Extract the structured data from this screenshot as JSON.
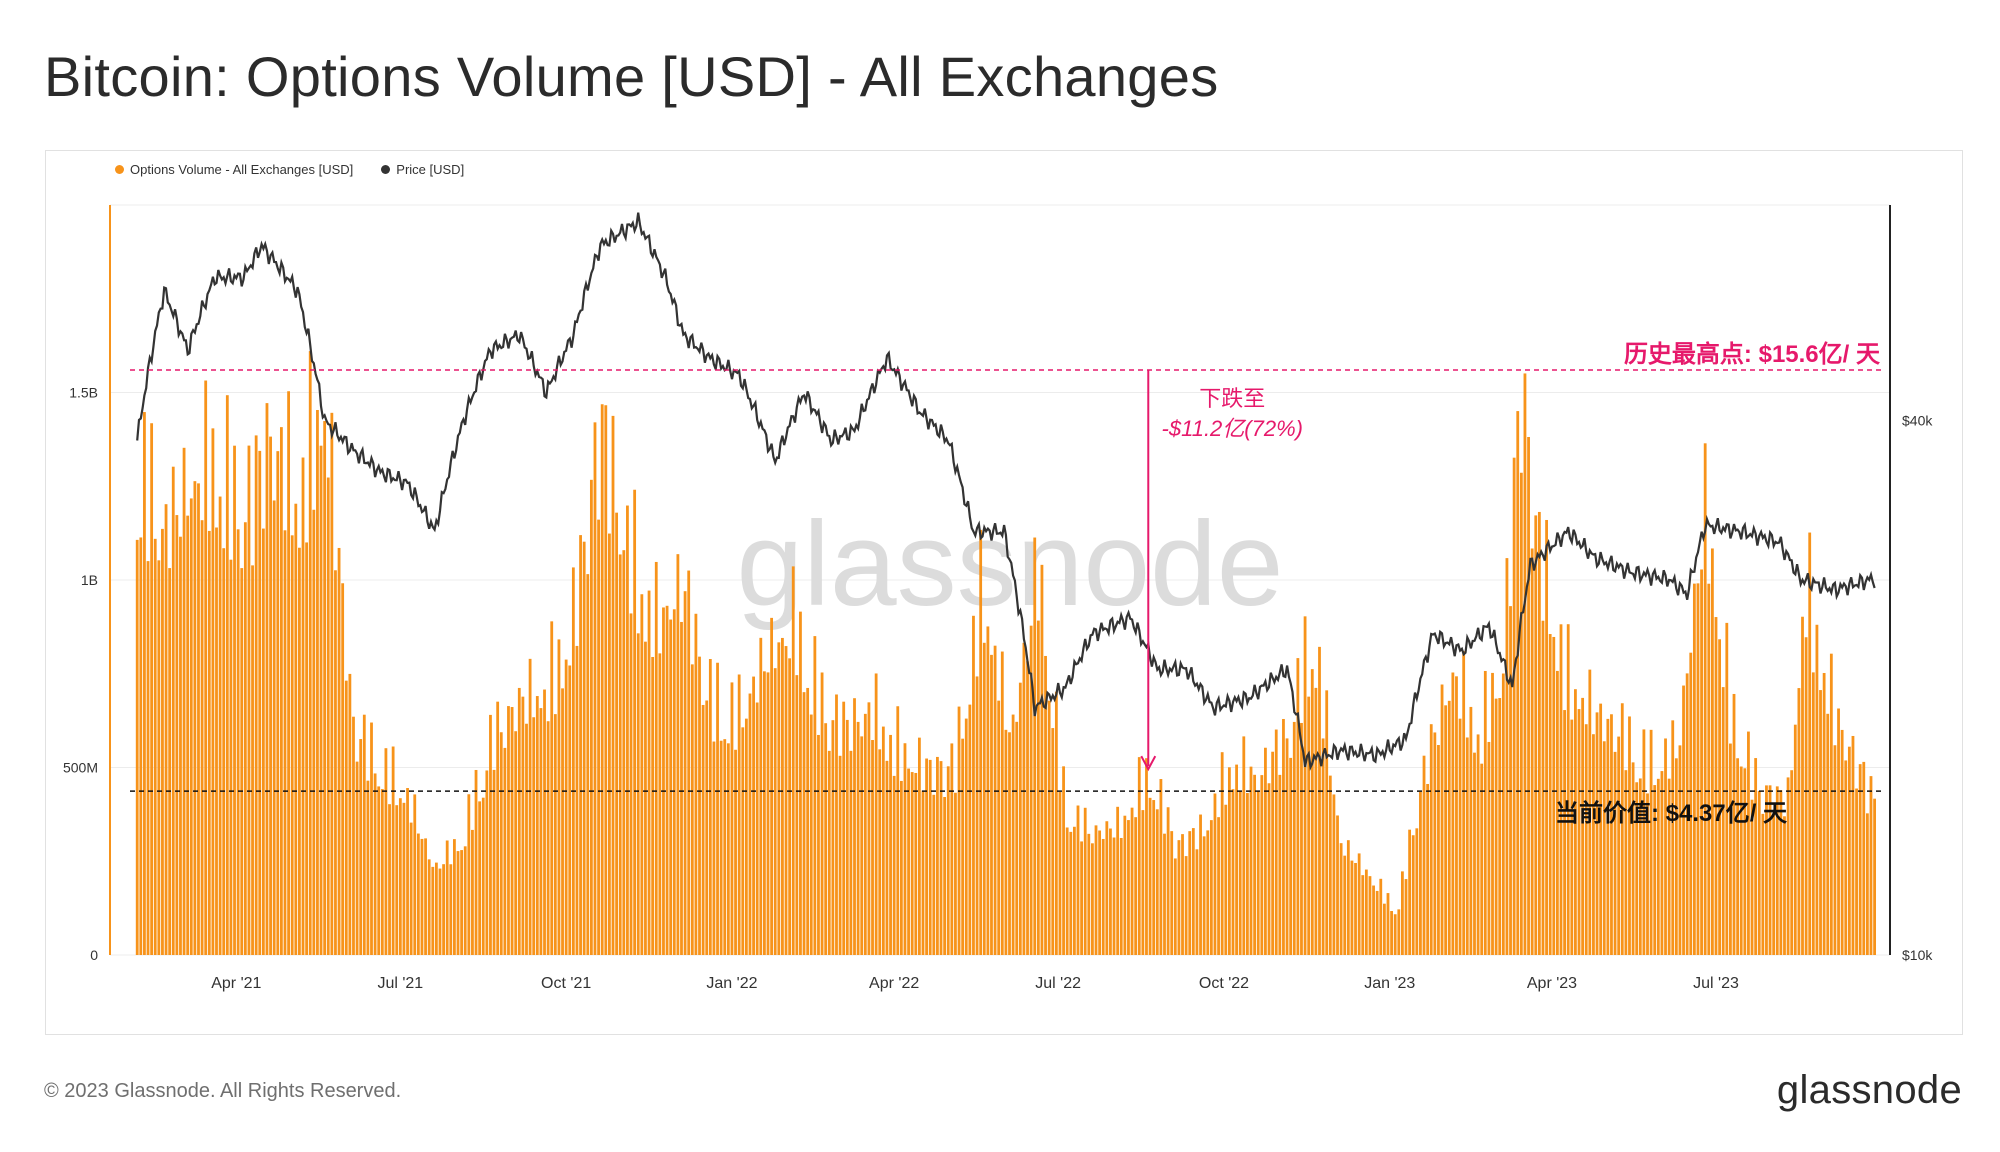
{
  "title": "Bitcoin: Options Volume [USD] - All Exchanges",
  "footer": "© 2023 Glassnode. All Rights Reserved.",
  "brand": "glassnode",
  "watermark": "glassnode",
  "legend": [
    {
      "label": "Options Volume - All Exchanges [USD]",
      "color": "#f7931a"
    },
    {
      "label": "Price [USD]",
      "color": "#333333"
    }
  ],
  "colors": {
    "volume": "#f7931a",
    "price": "#333333",
    "annotation": "#e6196b",
    "current": "#111111"
  },
  "chart_data": {
    "type": "bar",
    "y_left": {
      "ticks": [
        "0",
        "500M",
        "1B",
        "1.5B"
      ],
      "range": [
        0,
        2000000000
      ]
    },
    "y_right": {
      "ticks": [
        "$10k",
        "$40k"
      ],
      "scale": "log",
      "range": [
        10000,
        70000
      ]
    },
    "x_ticks": [
      "Apr '21",
      "Jul '21",
      "Oct '21",
      "Jan '22",
      "Apr '22",
      "Jul '22",
      "Oct '22",
      "Jan '23",
      "Apr '23",
      "Jul '23"
    ],
    "x_range": [
      "2021-02-01",
      "2023-09-30"
    ],
    "series": [
      {
        "name": "Options Volume - All Exchanges [USD]",
        "axis": "left",
        "unit": "USD",
        "points": [
          [
            "2021-02-05",
            1350000000
          ],
          [
            "2021-02-20",
            1150000000
          ],
          [
            "2021-03-05",
            1250000000
          ],
          [
            "2021-03-20",
            1350000000
          ],
          [
            "2021-04-05",
            1200000000
          ],
          [
            "2021-04-20",
            1400000000
          ],
          [
            "2021-05-05",
            1250000000
          ],
          [
            "2021-05-20",
            1500000000
          ],
          [
            "2021-06-05",
            620000000
          ],
          [
            "2021-06-20",
            520000000
          ],
          [
            "2021-07-05",
            430000000
          ],
          [
            "2021-07-20",
            230000000
          ],
          [
            "2021-08-05",
            320000000
          ],
          [
            "2021-08-20",
            580000000
          ],
          [
            "2021-09-05",
            680000000
          ],
          [
            "2021-09-20",
            720000000
          ],
          [
            "2021-10-05",
            900000000
          ],
          [
            "2021-10-20",
            1450000000
          ],
          [
            "2021-11-05",
            1100000000
          ],
          [
            "2021-11-20",
            900000000
          ],
          [
            "2021-12-05",
            1000000000
          ],
          [
            "2021-12-20",
            700000000
          ],
          [
            "2022-01-05",
            650000000
          ],
          [
            "2022-01-20",
            800000000
          ],
          [
            "2022-02-05",
            900000000
          ],
          [
            "2022-02-20",
            680000000
          ],
          [
            "2022-03-05",
            620000000
          ],
          [
            "2022-03-20",
            660000000
          ],
          [
            "2022-04-05",
            550000000
          ],
          [
            "2022-04-20",
            500000000
          ],
          [
            "2022-05-05",
            520000000
          ],
          [
            "2022-05-20",
            1000000000
          ],
          [
            "2022-06-05",
            580000000
          ],
          [
            "2022-06-20",
            1050000000
          ],
          [
            "2022-07-05",
            400000000
          ],
          [
            "2022-07-20",
            330000000
          ],
          [
            "2022-08-05",
            350000000
          ],
          [
            "2022-08-20",
            500000000
          ],
          [
            "2022-09-05",
            300000000
          ],
          [
            "2022-09-20",
            340000000
          ],
          [
            "2022-10-05",
            520000000
          ],
          [
            "2022-10-20",
            480000000
          ],
          [
            "2022-11-05",
            600000000
          ],
          [
            "2022-11-20",
            880000000
          ],
          [
            "2022-12-05",
            300000000
          ],
          [
            "2022-12-20",
            220000000
          ],
          [
            "2023-01-05",
            120000000
          ],
          [
            "2023-01-20",
            500000000
          ],
          [
            "2023-02-05",
            760000000
          ],
          [
            "2023-02-20",
            600000000
          ],
          [
            "2023-03-05",
            800000000
          ],
          [
            "2023-03-15",
            1560000000
          ],
          [
            "2023-03-25",
            1100000000
          ],
          [
            "2023-04-10",
            750000000
          ],
          [
            "2023-04-25",
            650000000
          ],
          [
            "2023-05-10",
            600000000
          ],
          [
            "2023-05-25",
            520000000
          ],
          [
            "2023-06-10",
            560000000
          ],
          [
            "2023-06-25",
            1200000000
          ],
          [
            "2023-07-10",
            650000000
          ],
          [
            "2023-07-25",
            450000000
          ],
          [
            "2023-08-10",
            420000000
          ],
          [
            "2023-08-20",
            1000000000
          ],
          [
            "2023-09-05",
            650000000
          ],
          [
            "2023-09-25",
            437000000
          ]
        ]
      },
      {
        "name": "Price [USD]",
        "axis": "right",
        "unit": "USD",
        "points": [
          [
            "2021-02-05",
            38000
          ],
          [
            "2021-02-20",
            56000
          ],
          [
            "2021-03-05",
            48000
          ],
          [
            "2021-03-20",
            58000
          ],
          [
            "2021-04-05",
            58000
          ],
          [
            "2021-04-15",
            63000
          ],
          [
            "2021-05-05",
            56000
          ],
          [
            "2021-05-20",
            40000
          ],
          [
            "2021-06-05",
            37000
          ],
          [
            "2021-06-20",
            35000
          ],
          [
            "2021-07-05",
            34000
          ],
          [
            "2021-07-20",
            30000
          ],
          [
            "2021-08-05",
            40000
          ],
          [
            "2021-08-20",
            48000
          ],
          [
            "2021-09-05",
            50000
          ],
          [
            "2021-09-20",
            43000
          ],
          [
            "2021-10-05",
            50000
          ],
          [
            "2021-10-20",
            63000
          ],
          [
            "2021-11-10",
            67000
          ],
          [
            "2021-11-25",
            58000
          ],
          [
            "2021-12-05",
            50000
          ],
          [
            "2021-12-20",
            47000
          ],
          [
            "2022-01-05",
            45000
          ],
          [
            "2022-01-25",
            36000
          ],
          [
            "2022-02-10",
            43000
          ],
          [
            "2022-02-25",
            38000
          ],
          [
            "2022-03-10",
            39000
          ],
          [
            "2022-03-28",
            47000
          ],
          [
            "2022-04-15",
            41000
          ],
          [
            "2022-05-01",
            38000
          ],
          [
            "2022-05-15",
            30000
          ],
          [
            "2022-06-01",
            30000
          ],
          [
            "2022-06-18",
            19000
          ],
          [
            "2022-07-05",
            20000
          ],
          [
            "2022-07-20",
            23000
          ],
          [
            "2022-08-10",
            24000
          ],
          [
            "2022-08-25",
            21000
          ],
          [
            "2022-09-10",
            21000
          ],
          [
            "2022-09-25",
            19000
          ],
          [
            "2022-10-15",
            19500
          ],
          [
            "2022-11-05",
            21000
          ],
          [
            "2022-11-15",
            16500
          ],
          [
            "2022-12-05",
            17000
          ],
          [
            "2022-12-25",
            16800
          ],
          [
            "2023-01-10",
            17500
          ],
          [
            "2023-01-25",
            23000
          ],
          [
            "2023-02-10",
            22000
          ],
          [
            "2023-02-25",
            23500
          ],
          [
            "2023-03-10",
            20000
          ],
          [
            "2023-03-20",
            27500
          ],
          [
            "2023-04-10",
            30000
          ],
          [
            "2023-04-25",
            28000
          ],
          [
            "2023-05-15",
            27000
          ],
          [
            "2023-06-05",
            26500
          ],
          [
            "2023-06-15",
            25500
          ],
          [
            "2023-06-25",
            30500
          ],
          [
            "2023-07-15",
            30000
          ],
          [
            "2023-08-05",
            29200
          ],
          [
            "2023-08-17",
            26500
          ],
          [
            "2023-09-05",
            25800
          ],
          [
            "2023-09-25",
            26500
          ]
        ]
      }
    ],
    "annotations": {
      "ath_label": "历史最高点: $15.6亿/ 天",
      "ath_value": 1560000000,
      "current_label": "当前价值: $4.37亿/ 天",
      "current_value": 437000000,
      "drop_label_1": "下跌至",
      "drop_label_2": "-$11.2亿(72%)",
      "drop_date": "2022-08-20"
    }
  }
}
